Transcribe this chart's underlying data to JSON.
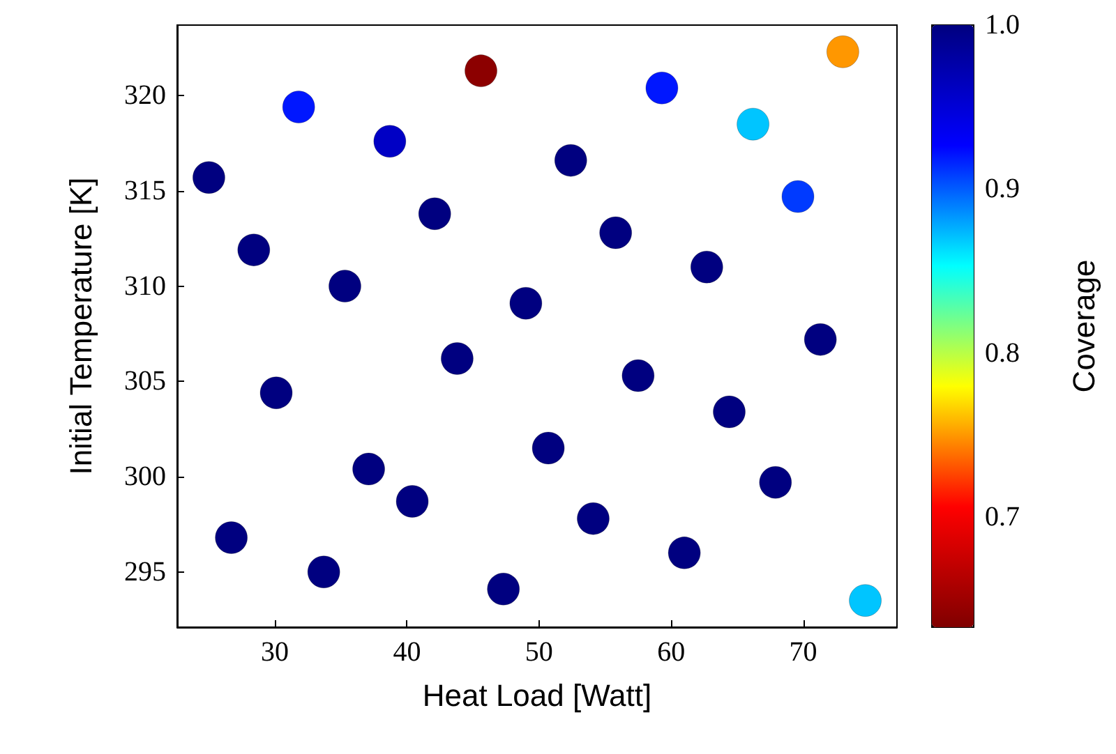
{
  "chart_data": {
    "type": "scatter",
    "xlabel": "Heat Load [Watt]",
    "ylabel": "Initial Temperature [K]",
    "clabel": "Coverage",
    "xlim": [
      22.6,
      77.1
    ],
    "xticks": [
      30,
      40,
      50,
      60,
      70
    ],
    "ylim": [
      292.1,
      323.7
    ],
    "yticks": [
      295,
      300,
      305,
      310,
      315,
      320
    ],
    "clim": [
      0.633,
      1.0
    ],
    "cticks": [
      0.7,
      0.8,
      0.9,
      {
        "value": 1,
        "label": "1.0"
      }
    ],
    "grid": false,
    "marker": "circle",
    "x": [
      45.6,
      73.0,
      31.8,
      38.7,
      59.3,
      66.2,
      69.6,
      74.7,
      25.0,
      28.4,
      35.3,
      30.1,
      37.1,
      42.1,
      43.8,
      40.4,
      33.7,
      26.7,
      49.0,
      50.7,
      47.3,
      52.4,
      55.8,
      57.5,
      54.1,
      62.7,
      64.4,
      61.0,
      71.3,
      67.9
    ],
    "values": [
      321.3,
      322.3,
      319.4,
      317.6,
      320.4,
      318.5,
      314.7,
      293.5,
      315.7,
      311.9,
      310.0,
      304.4,
      300.4,
      313.8,
      306.2,
      298.7,
      295.0,
      296.8,
      309.1,
      301.5,
      294.1,
      316.6,
      312.8,
      305.3,
      297.8,
      311.0,
      303.4,
      296.0,
      307.2,
      299.7
    ],
    "cvalues": [
      0.64,
      0.75,
      0.92,
      0.96,
      0.92,
      0.87,
      0.91,
      0.87,
      1.0,
      1.0,
      1.0,
      1.0,
      1.0,
      1.0,
      1.0,
      1.0,
      1.0,
      1.0,
      1.0,
      1.0,
      1.0,
      1.0,
      1.0,
      1.0,
      1.0,
      1.0,
      1.0,
      1.0,
      1.0,
      1.0
    ]
  }
}
